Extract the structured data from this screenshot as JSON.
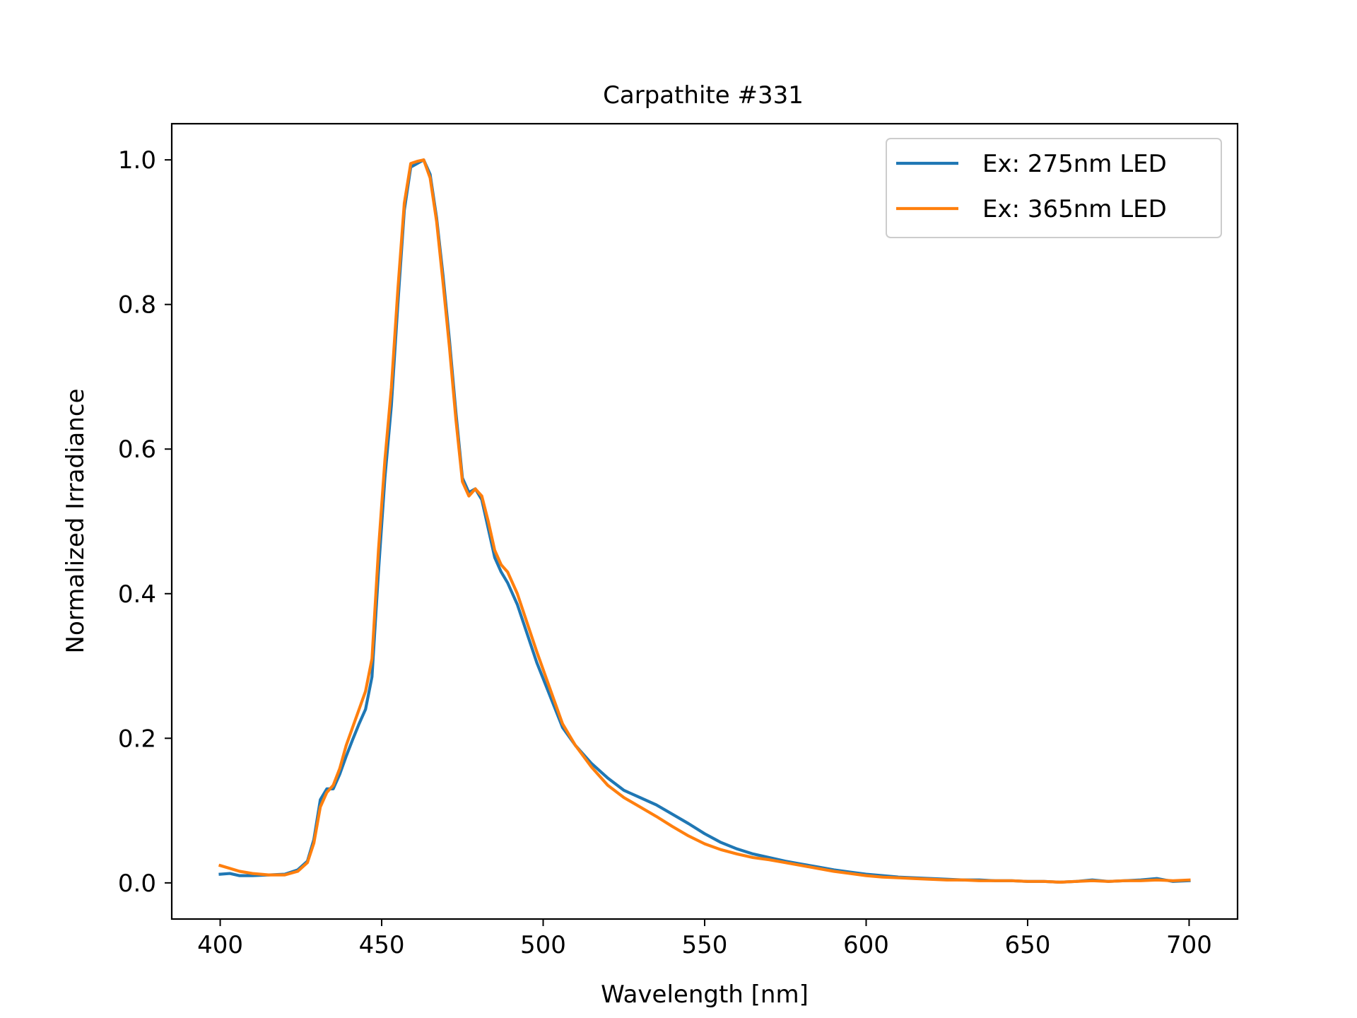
{
  "chart_data": {
    "type": "line",
    "title": "Carpathite #331",
    "xlabel": "Wavelength [nm]",
    "ylabel": "Normalized Irradiance",
    "xlim": [
      385,
      715
    ],
    "ylim": [
      -0.05,
      1.05
    ],
    "xticks": [
      400,
      450,
      500,
      550,
      600,
      650,
      700
    ],
    "xtick_labels": [
      "400",
      "450",
      "500",
      "550",
      "600",
      "650",
      "700"
    ],
    "yticks": [
      0.0,
      0.2,
      0.4,
      0.6,
      0.8,
      1.0
    ],
    "ytick_labels": [
      "0.0",
      "0.2",
      "0.4",
      "0.6",
      "0.8",
      "1.0"
    ],
    "grid": false,
    "legend_position": "top-right",
    "series": [
      {
        "name": "Ex: 275nm LED",
        "color": "#1f77b4",
        "x": [
          400,
          403,
          406,
          410,
          415,
          420,
          424,
          427,
          429,
          431,
          433,
          435,
          437,
          439,
          441,
          443,
          445,
          447,
          449,
          451,
          453,
          455,
          457,
          459,
          461,
          463,
          465,
          467,
          469,
          471,
          473,
          475,
          477,
          479,
          481,
          483,
          485,
          487,
          489,
          492,
          495,
          498,
          502,
          506,
          510,
          515,
          520,
          525,
          530,
          535,
          540,
          545,
          550,
          555,
          560,
          565,
          570,
          575,
          580,
          585,
          590,
          595,
          600,
          605,
          610,
          615,
          620,
          625,
          630,
          635,
          640,
          645,
          650,
          655,
          660,
          665,
          670,
          675,
          680,
          685,
          690,
          695,
          700
        ],
        "y": [
          0.012,
          0.013,
          0.01,
          0.01,
          0.011,
          0.012,
          0.018,
          0.03,
          0.06,
          0.115,
          0.13,
          0.13,
          0.15,
          0.175,
          0.198,
          0.22,
          0.24,
          0.285,
          0.43,
          0.56,
          0.66,
          0.8,
          0.93,
          0.99,
          0.995,
          1.0,
          0.98,
          0.92,
          0.84,
          0.75,
          0.65,
          0.56,
          0.54,
          0.545,
          0.53,
          0.49,
          0.45,
          0.43,
          0.415,
          0.385,
          0.345,
          0.305,
          0.26,
          0.215,
          0.19,
          0.165,
          0.145,
          0.128,
          0.118,
          0.108,
          0.095,
          0.082,
          0.068,
          0.056,
          0.047,
          0.04,
          0.035,
          0.03,
          0.026,
          0.022,
          0.018,
          0.015,
          0.012,
          0.01,
          0.008,
          0.007,
          0.006,
          0.005,
          0.004,
          0.004,
          0.003,
          0.003,
          0.002,
          0.002,
          0.001,
          0.002,
          0.004,
          0.002,
          0.003,
          0.004,
          0.006,
          0.002,
          0.003
        ]
      },
      {
        "name": "Ex: 365nm LED",
        "color": "#ff7f0e",
        "x": [
          400,
          403,
          406,
          410,
          415,
          420,
          424,
          427,
          429,
          431,
          433,
          435,
          437,
          439,
          441,
          443,
          445,
          447,
          449,
          451,
          453,
          455,
          457,
          459,
          461,
          463,
          465,
          467,
          469,
          471,
          473,
          475,
          477,
          479,
          481,
          483,
          485,
          487,
          489,
          492,
          495,
          498,
          502,
          506,
          510,
          515,
          520,
          525,
          530,
          535,
          540,
          545,
          550,
          555,
          560,
          565,
          570,
          575,
          580,
          585,
          590,
          595,
          600,
          605,
          610,
          615,
          620,
          625,
          630,
          635,
          640,
          645,
          650,
          655,
          660,
          665,
          670,
          675,
          680,
          685,
          690,
          695,
          700
        ],
        "y": [
          0.024,
          0.02,
          0.016,
          0.013,
          0.011,
          0.011,
          0.016,
          0.028,
          0.055,
          0.105,
          0.125,
          0.135,
          0.158,
          0.19,
          0.215,
          0.24,
          0.265,
          0.31,
          0.46,
          0.585,
          0.685,
          0.82,
          0.94,
          0.995,
          0.998,
          1.0,
          0.975,
          0.915,
          0.83,
          0.74,
          0.64,
          0.555,
          0.535,
          0.545,
          0.535,
          0.5,
          0.46,
          0.44,
          0.43,
          0.4,
          0.36,
          0.32,
          0.27,
          0.22,
          0.19,
          0.16,
          0.135,
          0.118,
          0.105,
          0.092,
          0.078,
          0.065,
          0.054,
          0.046,
          0.04,
          0.035,
          0.032,
          0.028,
          0.024,
          0.02,
          0.016,
          0.013,
          0.01,
          0.008,
          0.007,
          0.006,
          0.005,
          0.004,
          0.004,
          0.003,
          0.003,
          0.003,
          0.002,
          0.002,
          0.001,
          0.002,
          0.003,
          0.002,
          0.003,
          0.003,
          0.004,
          0.003,
          0.004
        ]
      }
    ]
  }
}
